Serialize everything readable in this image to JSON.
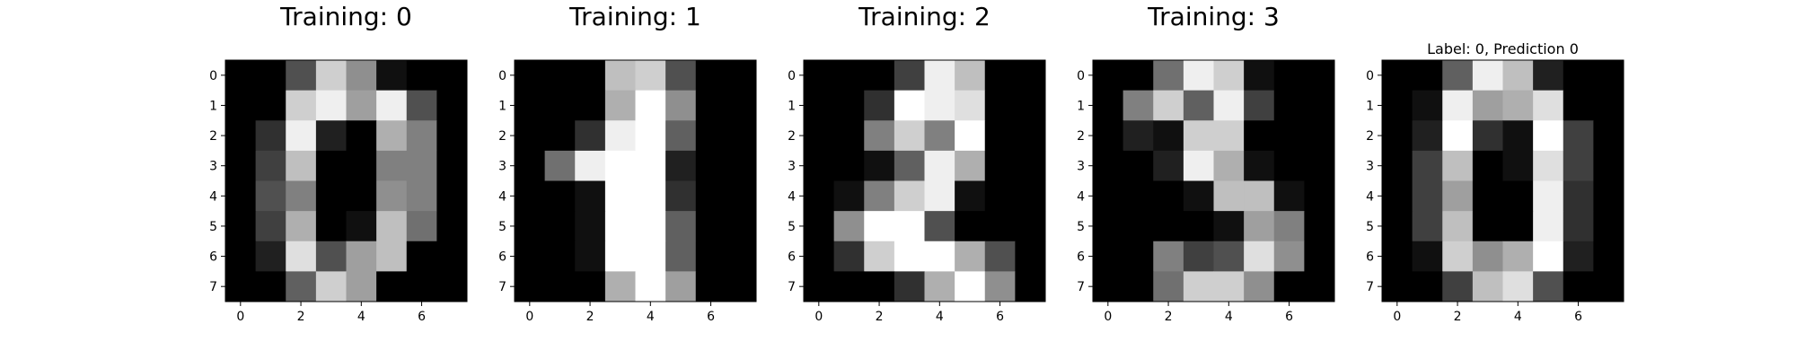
{
  "chart_data": [
    {
      "type": "heatmap",
      "title": "Training: 0",
      "colormap": "gray_r",
      "vmin": 0,
      "vmax": 16,
      "x_ticks": [
        "0",
        "2",
        "4",
        "6"
      ],
      "y_ticks": [
        "0",
        "1",
        "2",
        "3",
        "4",
        "5",
        "6",
        "7"
      ],
      "grid": false,
      "values": [
        [
          0,
          0,
          5,
          13,
          9,
          1,
          0,
          0
        ],
        [
          0,
          0,
          13,
          15,
          10,
          15,
          5,
          0
        ],
        [
          0,
          3,
          15,
          2,
          0,
          11,
          8,
          0
        ],
        [
          0,
          4,
          12,
          0,
          0,
          8,
          8,
          0
        ],
        [
          0,
          5,
          8,
          0,
          0,
          9,
          8,
          0
        ],
        [
          0,
          4,
          11,
          0,
          1,
          12,
          7,
          0
        ],
        [
          0,
          2,
          14,
          5,
          10,
          12,
          0,
          0
        ],
        [
          0,
          0,
          6,
          13,
          10,
          0,
          0,
          0
        ]
      ]
    },
    {
      "type": "heatmap",
      "title": "Training: 1",
      "colormap": "gray_r",
      "vmin": 0,
      "vmax": 16,
      "x_ticks": [
        "0",
        "2",
        "4",
        "6"
      ],
      "y_ticks": [
        "0",
        "1",
        "2",
        "3",
        "4",
        "5",
        "6",
        "7"
      ],
      "grid": false,
      "values": [
        [
          0,
          0,
          0,
          12,
          13,
          5,
          0,
          0
        ],
        [
          0,
          0,
          0,
          11,
          16,
          9,
          0,
          0
        ],
        [
          0,
          0,
          3,
          15,
          16,
          6,
          0,
          0
        ],
        [
          0,
          7,
          15,
          16,
          16,
          2,
          0,
          0
        ],
        [
          0,
          0,
          1,
          16,
          16,
          3,
          0,
          0
        ],
        [
          0,
          0,
          1,
          16,
          16,
          6,
          0,
          0
        ],
        [
          0,
          0,
          1,
          16,
          16,
          6,
          0,
          0
        ],
        [
          0,
          0,
          0,
          11,
          16,
          10,
          0,
          0
        ]
      ]
    },
    {
      "type": "heatmap",
      "title": "Training: 2",
      "colormap": "gray_r",
      "vmin": 0,
      "vmax": 16,
      "x_ticks": [
        "0",
        "2",
        "4",
        "6"
      ],
      "y_ticks": [
        "0",
        "1",
        "2",
        "3",
        "4",
        "5",
        "6",
        "7"
      ],
      "grid": false,
      "values": [
        [
          0,
          0,
          0,
          4,
          15,
          12,
          0,
          0
        ],
        [
          0,
          0,
          3,
          16,
          15,
          14,
          0,
          0
        ],
        [
          0,
          0,
          8,
          13,
          8,
          16,
          0,
          0
        ],
        [
          0,
          0,
          1,
          6,
          15,
          11,
          0,
          0
        ],
        [
          0,
          1,
          8,
          13,
          15,
          1,
          0,
          0
        ],
        [
          0,
          9,
          16,
          16,
          5,
          0,
          0,
          0
        ],
        [
          0,
          3,
          13,
          16,
          16,
          11,
          5,
          0
        ],
        [
          0,
          0,
          0,
          3,
          11,
          16,
          9,
          0
        ]
      ]
    },
    {
      "type": "heatmap",
      "title": "Training: 3",
      "colormap": "gray_r",
      "vmin": 0,
      "vmax": 16,
      "x_ticks": [
        "0",
        "2",
        "4",
        "6"
      ],
      "y_ticks": [
        "0",
        "1",
        "2",
        "3",
        "4",
        "5",
        "6",
        "7"
      ],
      "grid": false,
      "values": [
        [
          0,
          0,
          7,
          15,
          13,
          1,
          0,
          0
        ],
        [
          0,
          8,
          13,
          6,
          15,
          4,
          0,
          0
        ],
        [
          0,
          2,
          1,
          13,
          13,
          0,
          0,
          0
        ],
        [
          0,
          0,
          2,
          15,
          11,
          1,
          0,
          0
        ],
        [
          0,
          0,
          0,
          1,
          12,
          12,
          1,
          0
        ],
        [
          0,
          0,
          0,
          0,
          1,
          10,
          8,
          0
        ],
        [
          0,
          0,
          8,
          4,
          5,
          14,
          9,
          0
        ],
        [
          0,
          0,
          7,
          13,
          13,
          9,
          0,
          0
        ]
      ]
    },
    {
      "type": "heatmap",
      "title": "Label: 0, Prediction 0",
      "colormap": "gray_r",
      "vmin": 0,
      "vmax": 16,
      "x_ticks": [
        "0",
        "2",
        "4",
        "6"
      ],
      "y_ticks": [
        "0",
        "1",
        "2",
        "3",
        "4",
        "5",
        "6",
        "7"
      ],
      "grid": false,
      "values": [
        [
          0,
          0,
          6,
          15,
          12,
          2,
          0,
          0
        ],
        [
          0,
          1,
          15,
          10,
          11,
          14,
          0,
          0
        ],
        [
          0,
          2,
          16,
          3,
          1,
          16,
          4,
          0
        ],
        [
          0,
          4,
          12,
          0,
          1,
          14,
          4,
          0
        ],
        [
          0,
          4,
          10,
          0,
          0,
          15,
          3,
          0
        ],
        [
          0,
          4,
          12,
          0,
          0,
          15,
          3,
          0
        ],
        [
          0,
          1,
          13,
          9,
          11,
          16,
          2,
          0
        ],
        [
          0,
          0,
          4,
          12,
          14,
          5,
          0,
          0
        ]
      ]
    }
  ]
}
